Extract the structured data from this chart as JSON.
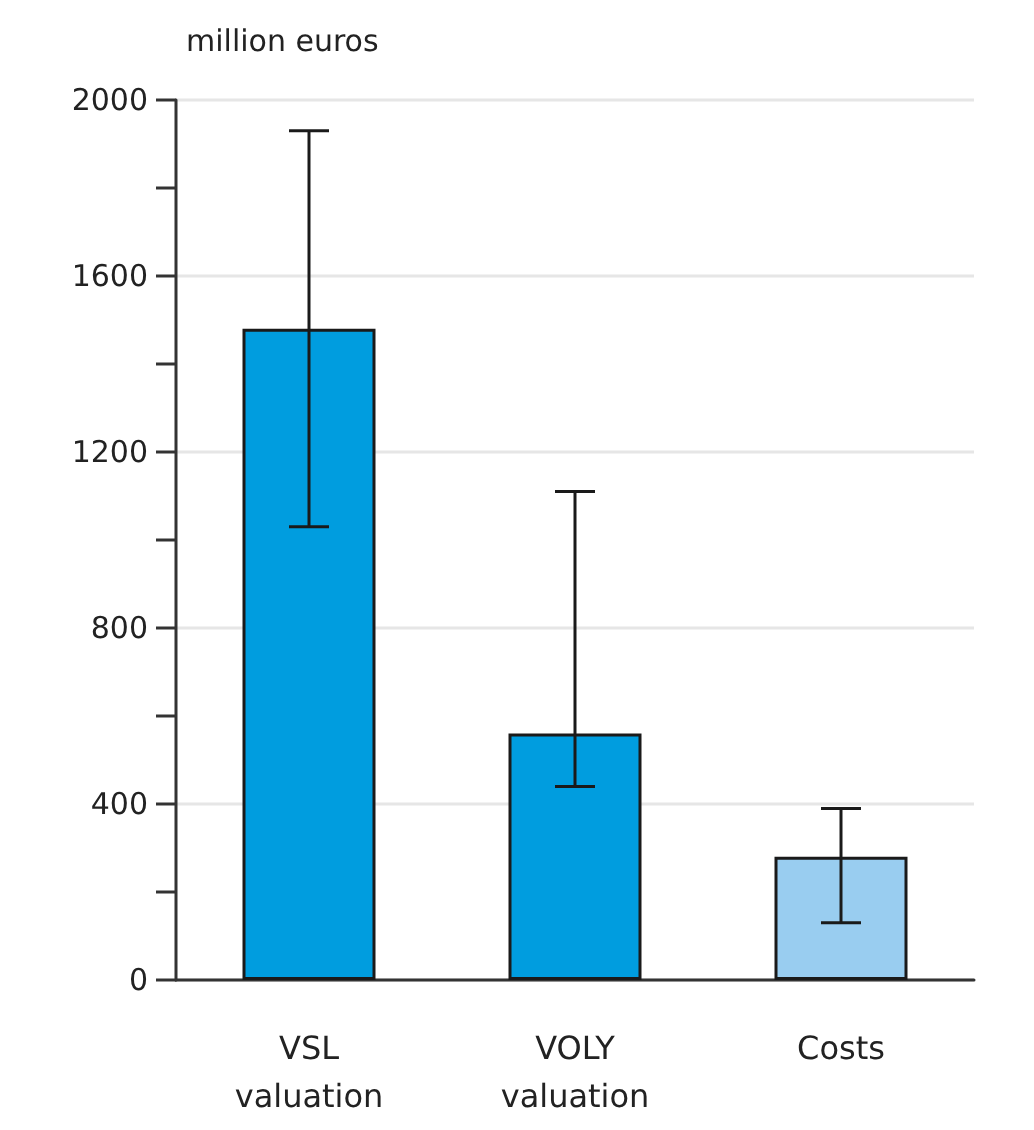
{
  "chart_data": {
    "type": "bar",
    "ylabel": "million euros",
    "categories": [
      "VSL\nvaluation",
      "VOLY\nvaluation",
      "Costs"
    ],
    "values": [
      1480,
      560,
      280
    ],
    "colors": [
      "#009ddf",
      "#009ddf",
      "#99cdf0"
    ],
    "errors": [
      [
        1030,
        1930
      ],
      [
        440,
        1110
      ],
      [
        130,
        390
      ]
    ],
    "ylim": [
      0,
      2000
    ],
    "yticks": [
      0,
      {
        "value": 200,
        "label": null
      },
      400,
      {
        "value": 600,
        "label": null
      },
      800,
      {
        "value": 1000,
        "label": null
      },
      1200,
      {
        "value": 1400,
        "label": null
      },
      1600,
      {
        "value": 1800,
        "label": null
      },
      2000
    ],
    "grid": "y"
  }
}
